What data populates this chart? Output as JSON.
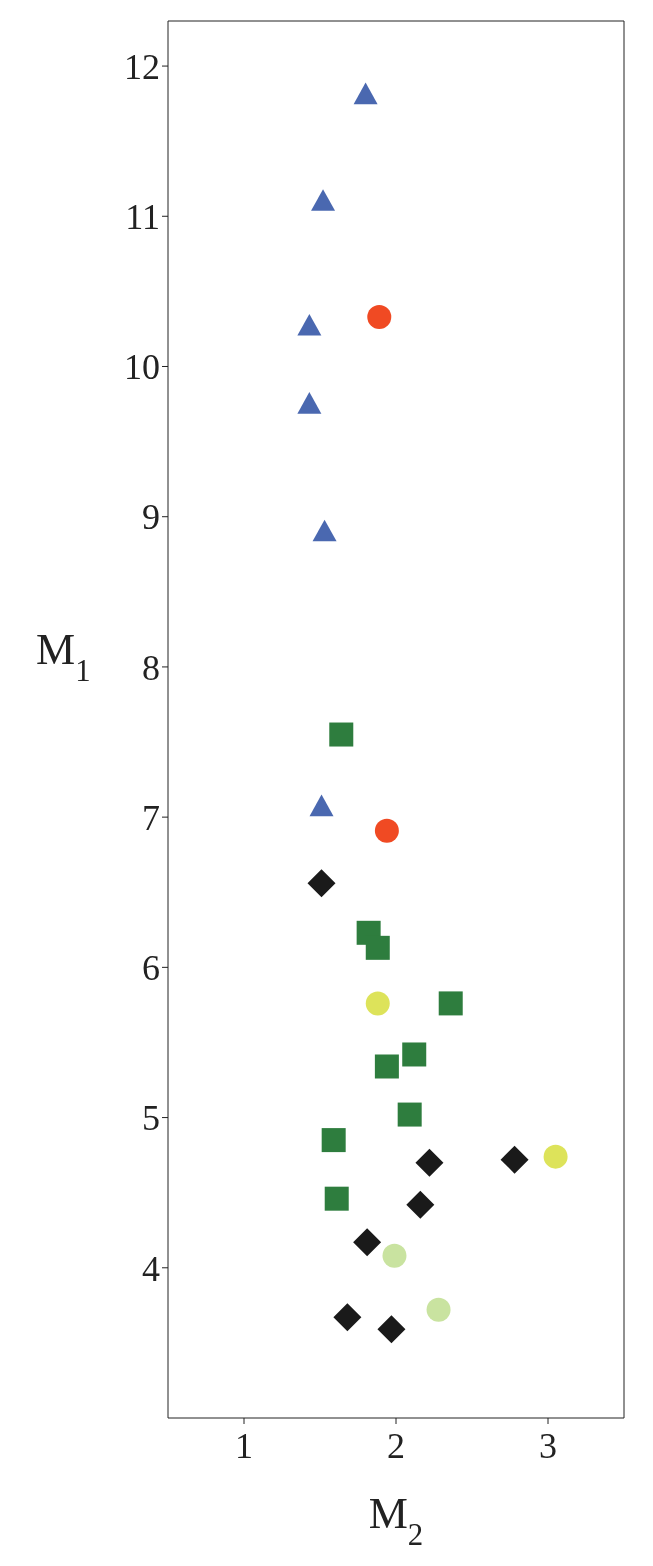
{
  "chart_data": {
    "type": "scatter",
    "xlabel": "M$_{2}$",
    "ylabel": "M$_{1}$",
    "xlim": [
      0.5,
      3.5
    ],
    "xticks": [
      1,
      2,
      3
    ],
    "ylim": [
      3,
      12.3
    ],
    "yticks": [
      4,
      5,
      6,
      7,
      8,
      9,
      10,
      11,
      12
    ],
    "series": [
      {
        "color": "#4a68b0",
        "marker": "triangle",
        "x": [
          1.8,
          1.52,
          1.43,
          1.43,
          1.53,
          1.51
        ],
        "values": [
          11.81,
          11.1,
          10.27,
          9.75,
          8.9,
          7.07
        ]
      },
      {
        "color": "#f04a23",
        "marker": "circle",
        "x": [
          1.89,
          1.94
        ],
        "values": [
          10.33,
          6.91
        ]
      },
      {
        "color": "#2e7d3e",
        "marker": "square",
        "x": [
          1.64,
          1.82,
          1.88,
          2.36,
          2.12,
          1.94,
          2.09,
          1.59,
          1.61
        ],
        "values": [
          7.55,
          6.23,
          6.13,
          5.76,
          5.42,
          5.34,
          5.02,
          4.85,
          4.46
        ]
      },
      {
        "color": "#1a1a1a",
        "marker": "diamond",
        "x": [
          1.51,
          2.22,
          2.78,
          2.16,
          1.81,
          1.68,
          1.97
        ],
        "values": [
          6.56,
          4.7,
          4.72,
          4.42,
          4.17,
          3.67,
          3.59
        ]
      },
      {
        "color": "#dde35a",
        "marker": "circle",
        "x": [
          1.88,
          3.05
        ],
        "values": [
          5.76,
          4.74
        ]
      },
      {
        "color": "#c9e3a0",
        "marker": "circle",
        "x": [
          1.99,
          2.28
        ],
        "values": [
          4.08,
          3.72
        ]
      }
    ]
  }
}
